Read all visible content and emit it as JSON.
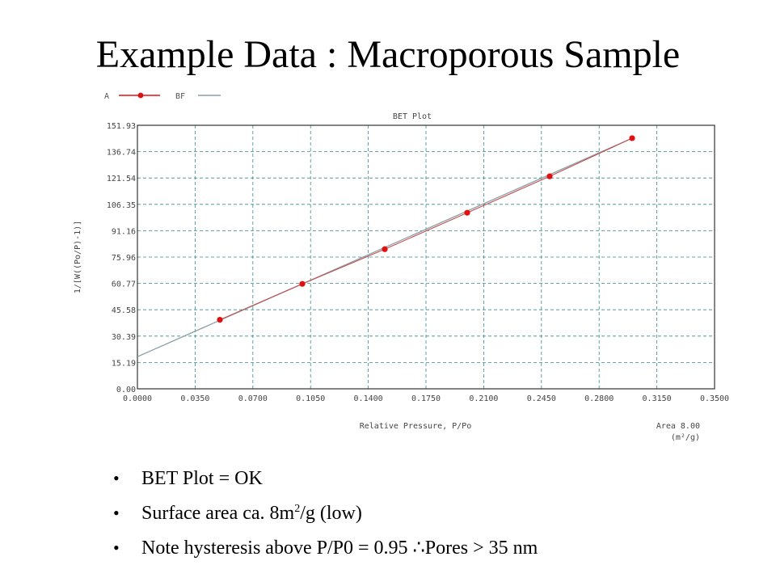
{
  "slide": {
    "title": "Example Data : Macroporous Sample",
    "bullets": [
      {
        "text": "BET Plot = OK"
      },
      {
        "pre": "Surface area ca. 8m",
        "sup": "2",
        "post": "/g (low)"
      },
      {
        "text": "Note hysteresis above P/P0 = 0.95 ∴Pores > 35 nm"
      }
    ]
  },
  "chart_data": {
    "type": "scatter",
    "title": "BET Plot",
    "xlabel": "Relative Pressure, P/Po",
    "ylabel": "1/[W((Po/P)-1)]",
    "xlim": [
      0,
      0.35
    ],
    "ylim": [
      0,
      151.93
    ],
    "x_ticks": [
      "0.0000",
      "0.0350",
      "0.0700",
      "0.1050",
      "0.1400",
      "0.1750",
      "0.2100",
      "0.2450",
      "0.2800",
      "0.3150",
      "0.3500"
    ],
    "y_ticks": [
      "0.00",
      "15.19",
      "30.39",
      "45.58",
      "60.77",
      "75.96",
      "91.16",
      "106.35",
      "121.54",
      "136.74",
      "151.93"
    ],
    "grid": true,
    "legend_position": "top-left",
    "area_label": "Area 8.00",
    "area_unit": "(m²/g)",
    "series": [
      {
        "name": "A",
        "kind": "points",
        "color": "#e01010",
        "x": [
          0.05,
          0.1,
          0.15,
          0.2,
          0.25,
          0.3
        ],
        "y": [
          39.8,
          60.5,
          80.5,
          101.5,
          122.5,
          144.5
        ]
      },
      {
        "name": "BF",
        "kind": "line",
        "color": "#8a9fa6",
        "x": [
          0.0,
          0.3
        ],
        "y": [
          18.5,
          144.5
        ]
      }
    ]
  }
}
